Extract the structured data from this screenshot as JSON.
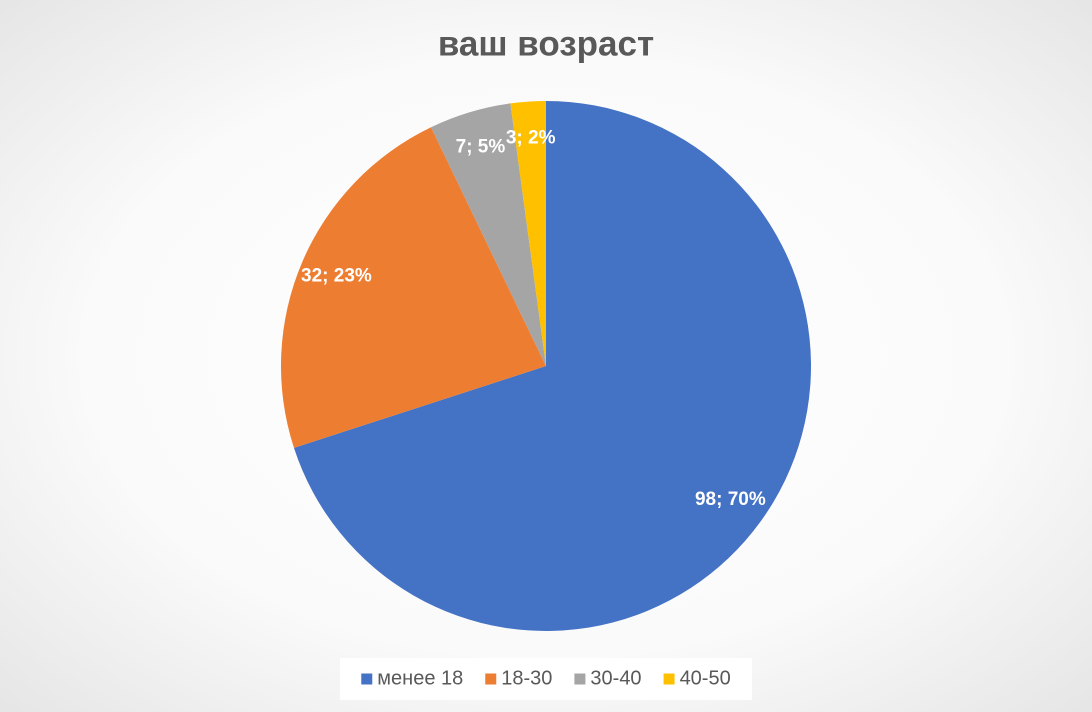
{
  "chart_data": {
    "type": "pie",
    "title": "ваш возраст",
    "categories": [
      "менее 18",
      "18-30",
      "30-40",
      "40-50"
    ],
    "values": [
      98,
      32,
      7,
      3
    ],
    "value_labels": [
      "98; 70%",
      "32; 23%",
      "7; 5%",
      "3; 2%"
    ],
    "colors": [
      "#4472c4",
      "#ed7d31",
      "#a5a5a5",
      "#ffc000"
    ],
    "legend": "bottom"
  }
}
